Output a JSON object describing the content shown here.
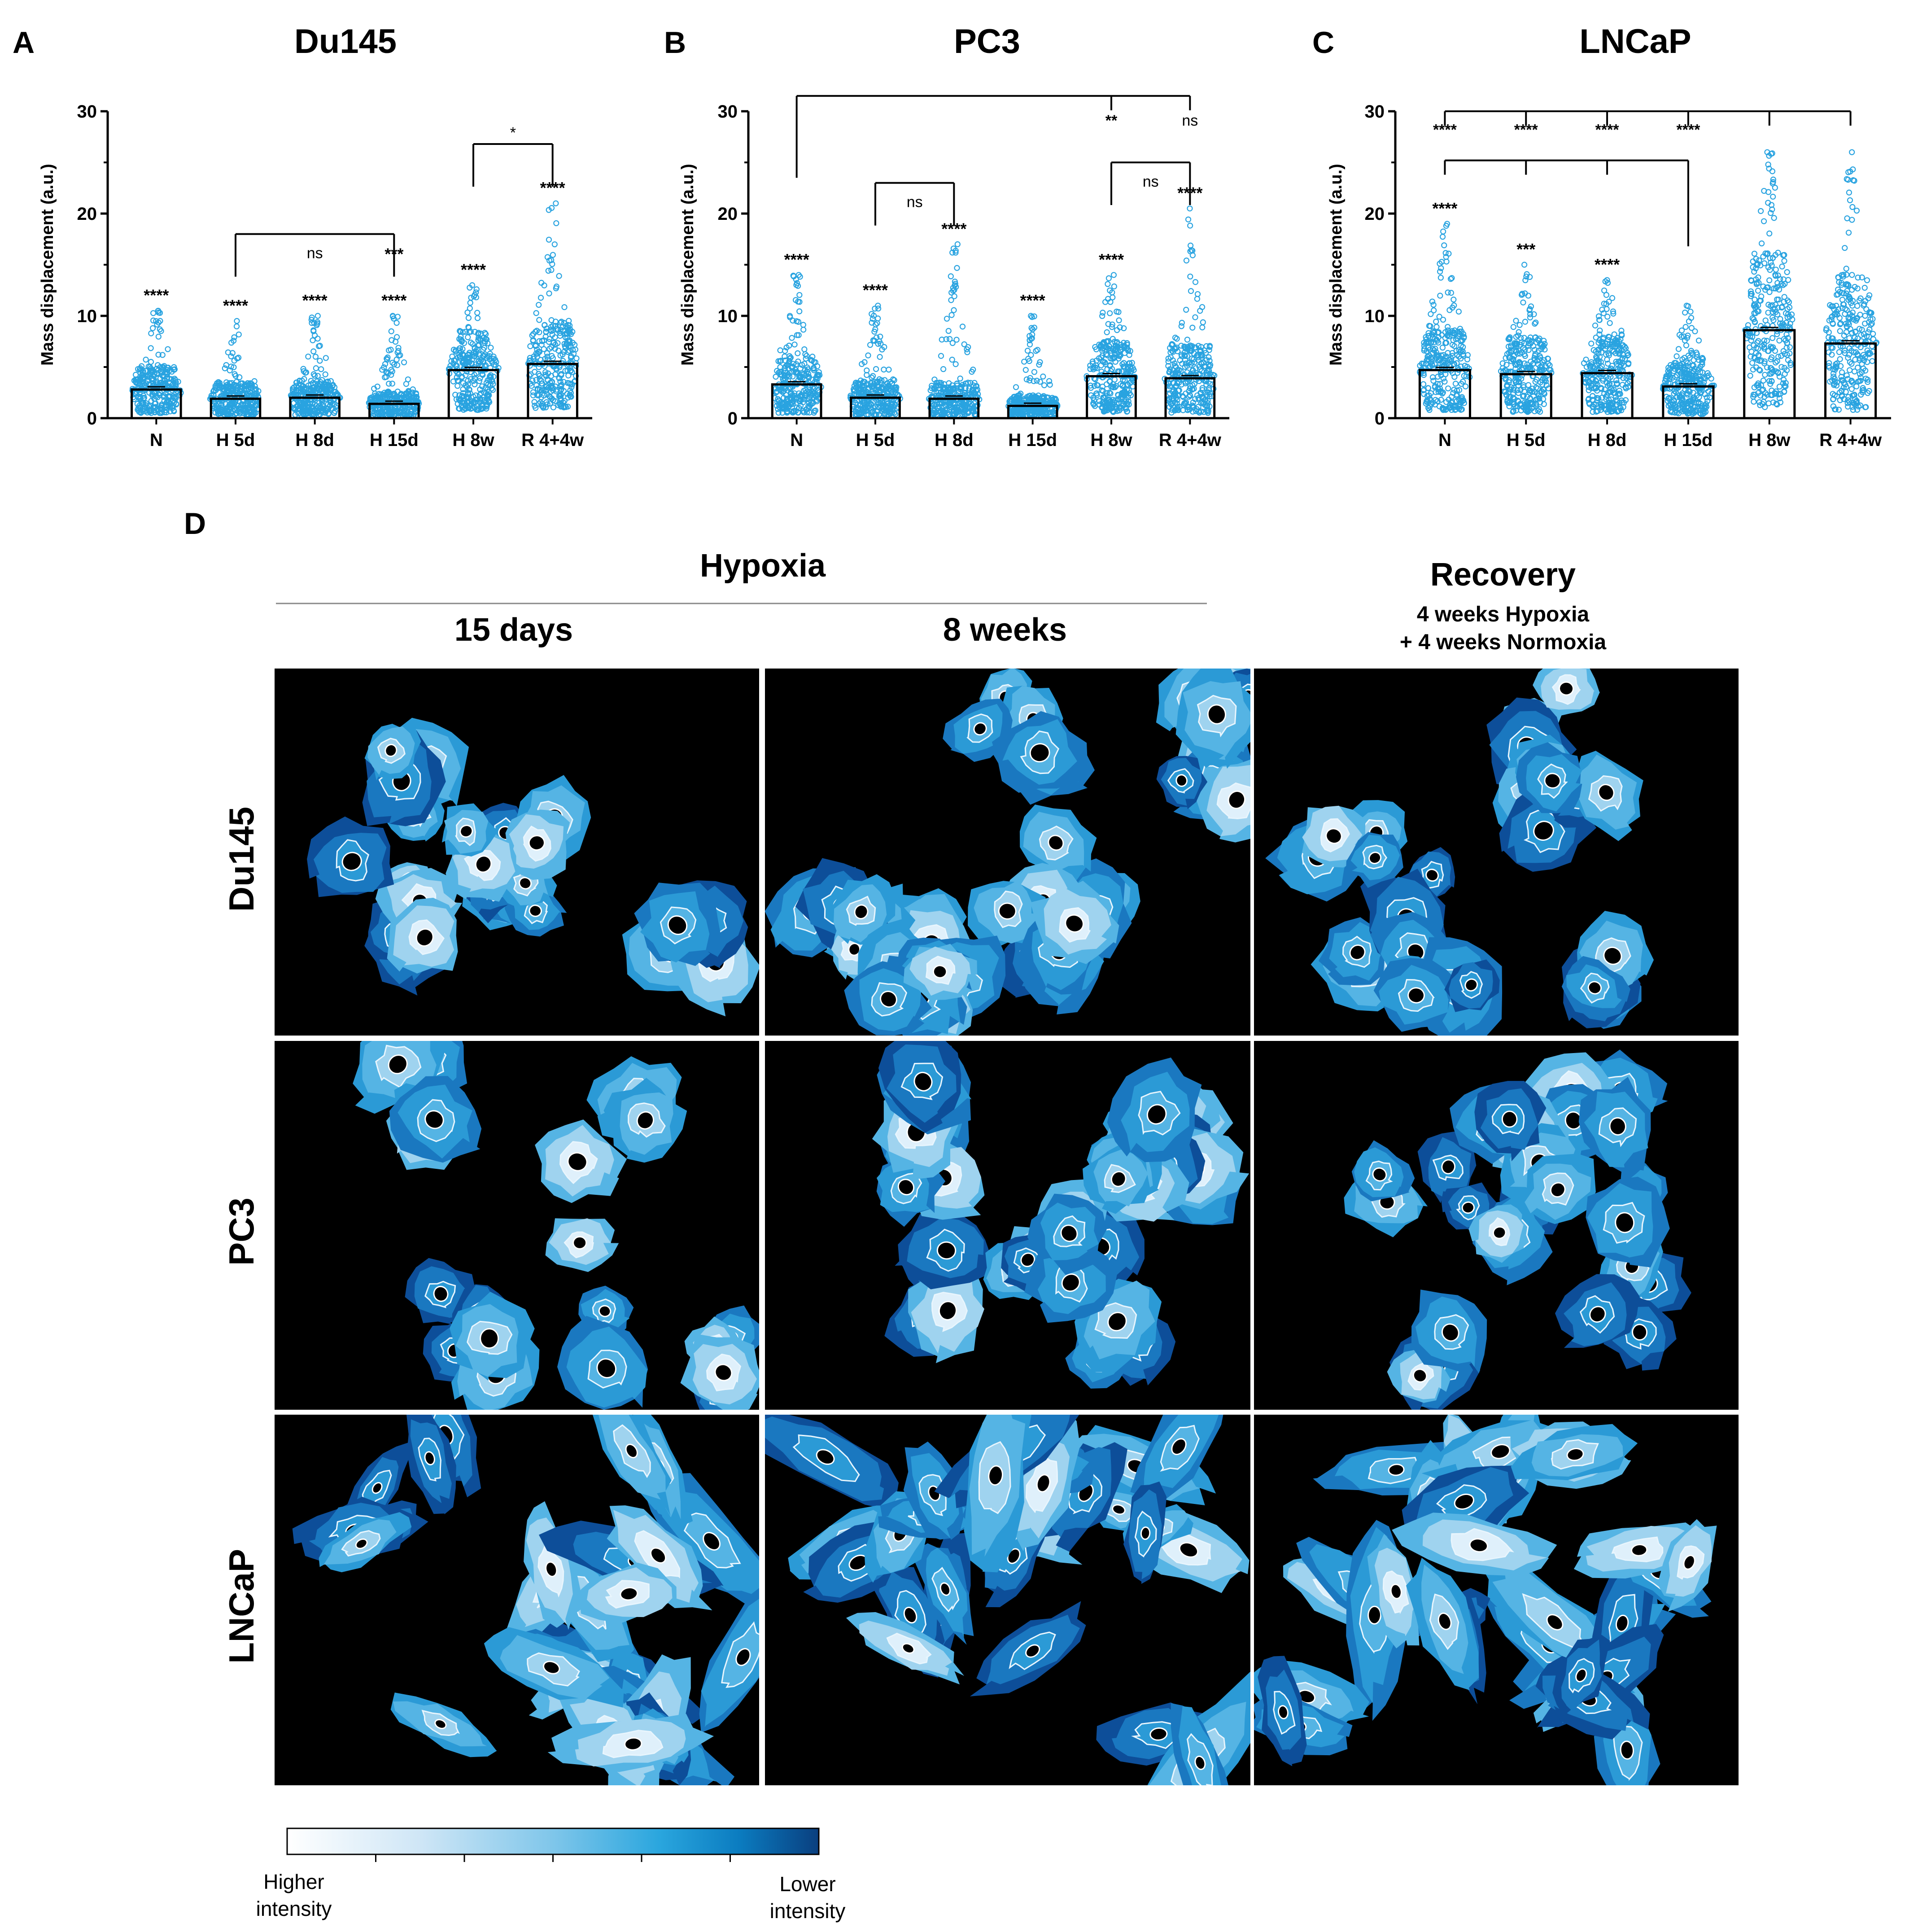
{
  "panels": {
    "A": {
      "letter": "A",
      "title": "Du145"
    },
    "B": {
      "letter": "B",
      "title": "PC3"
    },
    "C": {
      "letter": "C",
      "title": "LNCaP"
    },
    "D": {
      "letter": "D"
    }
  },
  "panel_d": {
    "group_hypoxia": "Hypoxia",
    "col_15d": "15 days",
    "col_8w": "8 weeks",
    "col_recovery": "Recovery",
    "recovery_line1": "4 weeks Hypoxia",
    "recovery_line2": "+ 4 weeks Normoxia",
    "rows": [
      "Du145",
      "PC3",
      "LNCaP"
    ],
    "colorbar": {
      "low_line1": "Higher",
      "low_line2": "intensity",
      "high_line1": "Lower",
      "high_line2": "intensity",
      "colors": [
        "#ffffff",
        "#cfe6f6",
        "#7fc6ea",
        "#2aa6de",
        "#0b7cc0",
        "#0a3f7f"
      ]
    },
    "cell_palette": [
      "#dff0fb",
      "#9fd3ef",
      "#55b4e4",
      "#2b9ad6",
      "#1a78c0",
      "#0d4e99"
    ]
  },
  "chart_data": [
    {
      "type": "bar",
      "panel": "A",
      "title": "Du145",
      "ylabel": "Mass displacement (a.u.)",
      "ylim": [
        0,
        30
      ],
      "yticks": [
        "0",
        "10",
        "20",
        "30"
      ],
      "categories": [
        "N",
        "H 5d",
        "H 8d",
        "H 15d",
        "H 8w",
        "R 4+4w"
      ],
      "values": [
        2.8,
        1.9,
        2.0,
        1.4,
        4.7,
        5.3
      ],
      "marker_color": "#29a3e0",
      "point_spread": [
        [
          0.5,
          10.5
        ],
        [
          0.3,
          9.5
        ],
        [
          0.3,
          10
        ],
        [
          0.2,
          10
        ],
        [
          0.8,
          13
        ],
        [
          1.0,
          21
        ]
      ],
      "significance_above_bars": [
        "****",
        "****",
        "****",
        "****",
        "****",
        "****"
      ],
      "extra_stars": [
        {
          "category": 3,
          "text": "***",
          "y": 15.5
        }
      ],
      "brackets": [
        {
          "from": 1,
          "to": 3,
          "y": 18,
          "label": "ns"
        },
        {
          "from": 4,
          "to": 5,
          "y": 26.8,
          "label": "*"
        }
      ]
    },
    {
      "type": "bar",
      "panel": "B",
      "title": "PC3",
      "ylabel": "Mass displacement (a.u.)",
      "ylim": [
        0,
        30
      ],
      "yticks": [
        "0",
        "10",
        "20",
        "30"
      ],
      "categories": [
        "N",
        "H 5d",
        "H 8d",
        "H 15d",
        "H 8w",
        "R 4+4w"
      ],
      "values": [
        3.3,
        2.0,
        1.9,
        1.2,
        4.1,
        3.9
      ],
      "marker_color": "#29a3e0",
      "point_spread": [
        [
          0.5,
          14
        ],
        [
          0.3,
          11
        ],
        [
          0.3,
          17
        ],
        [
          0.2,
          10
        ],
        [
          0.6,
          14
        ],
        [
          0.5,
          20.5
        ]
      ],
      "significance_above_bars": [
        "****",
        "****",
        "****",
        "****",
        "****",
        "****"
      ],
      "brackets": [
        {
          "from": 0,
          "to": 5,
          "y": 31.5,
          "label": "",
          "drop": [
            0,
            4,
            5
          ]
        },
        {
          "from": 1,
          "to": 2,
          "y": 23,
          "label": "ns"
        },
        {
          "from": 4,
          "to": 5,
          "y": 25,
          "label": "ns"
        }
      ],
      "bracket_labels": [
        {
          "category": 4,
          "text": "**",
          "y": 28.6
        },
        {
          "category": 5,
          "text": "ns",
          "y": 28.6
        }
      ]
    },
    {
      "type": "bar",
      "panel": "C",
      "title": "LNCaP",
      "ylabel": "Mass displacement (a.u.)",
      "ylim": [
        0,
        30
      ],
      "yticks": [
        "0",
        "10",
        "20",
        "30"
      ],
      "categories": [
        "N",
        "H 5d",
        "H 8d",
        "H 15d",
        "H 8w",
        "R 4+4w"
      ],
      "values": [
        4.7,
        4.3,
        4.4,
        3.1,
        8.6,
        7.3
      ],
      "marker_color": "#29a3e0",
      "point_spread": [
        [
          0.8,
          19
        ],
        [
          0.6,
          15
        ],
        [
          0.6,
          13.5
        ],
        [
          0.4,
          11
        ],
        [
          1.0,
          26
        ],
        [
          0.8,
          26
        ]
      ],
      "significance_above_bars": [
        "****",
        "***",
        "****",
        "",
        "",
        ""
      ],
      "brackets": [
        {
          "from": 0,
          "to": 5,
          "y": 30,
          "label": "",
          "drop": [
            0,
            1,
            2,
            3,
            4,
            5
          ]
        },
        {
          "from": 0,
          "to": 3,
          "y": 25.2,
          "label": "",
          "drop": [
            0,
            1,
            2,
            3
          ]
        }
      ],
      "bracket_labels": [
        {
          "category": 0,
          "text": "****",
          "y": 27.7
        },
        {
          "category": 1,
          "text": "****",
          "y": 27.7
        },
        {
          "category": 2,
          "text": "****",
          "y": 27.7
        },
        {
          "category": 3,
          "text": "****",
          "y": 27.7
        }
      ]
    }
  ]
}
